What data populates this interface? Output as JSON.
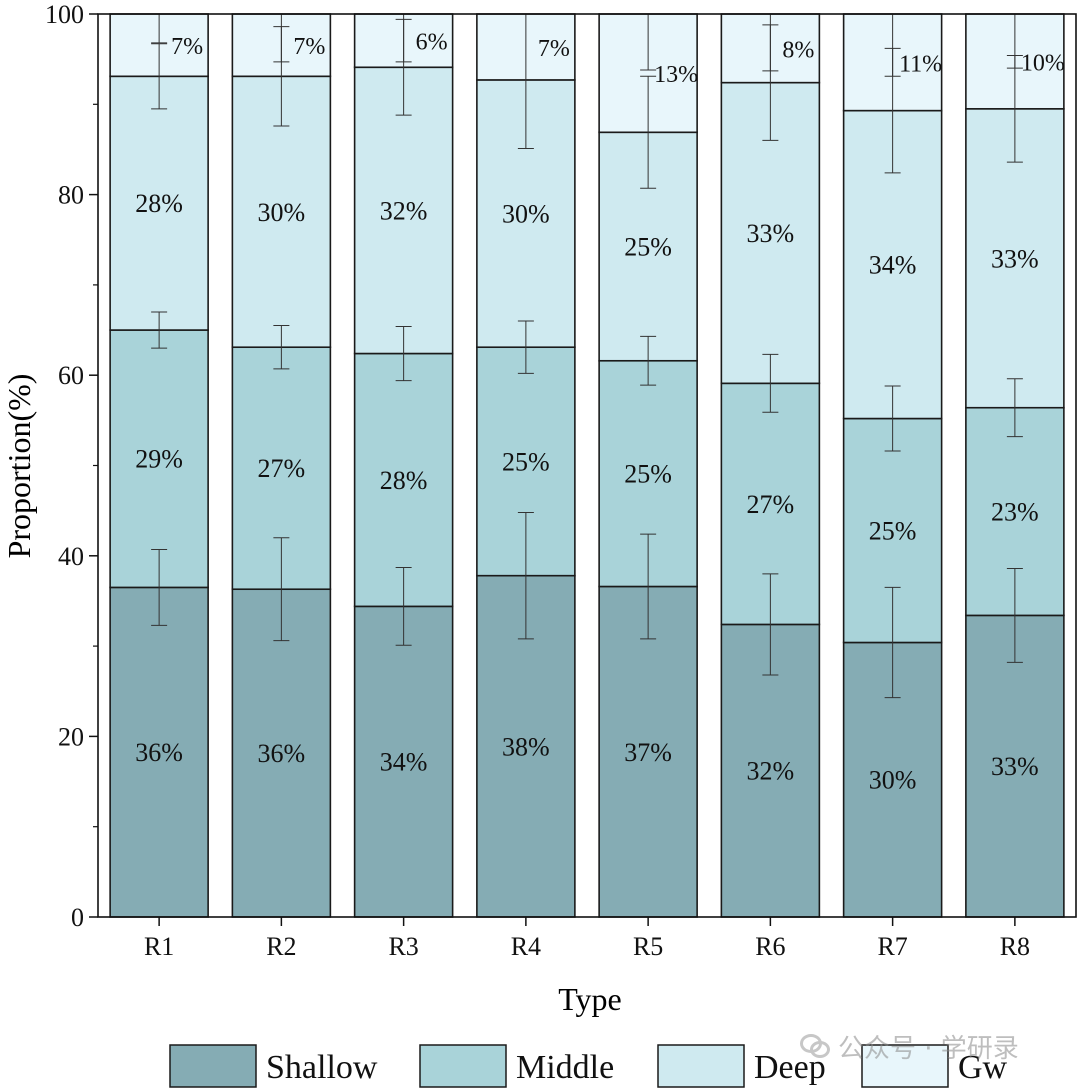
{
  "chart_data": {
    "type": "bar",
    "stacked": true,
    "title": "",
    "xlabel": "Type",
    "ylabel": "Proportion(%)",
    "ylim": [
      0,
      100
    ],
    "yticks": [
      0,
      20,
      40,
      60,
      80,
      100
    ],
    "categories": [
      "R1",
      "R2",
      "R3",
      "R4",
      "R5",
      "R6",
      "R7",
      "R8"
    ],
    "series": [
      {
        "name": "Shallow",
        "color": "#85acb4",
        "values": [
          36.5,
          36.3,
          34.4,
          37.8,
          36.6,
          32.4,
          30.4,
          33.4
        ],
        "labels": [
          "36%",
          "36%",
          "34%",
          "38%",
          "37%",
          "32%",
          "30%",
          "33%"
        ],
        "errors": [
          4.2,
          5.7,
          4.3,
          7.0,
          5.8,
          5.6,
          6.1,
          5.2
        ]
      },
      {
        "name": "Middle",
        "color": "#a9d3d9",
        "values": [
          28.5,
          26.8,
          28.0,
          25.3,
          25.0,
          26.7,
          24.8,
          23.0
        ],
        "labels": [
          "29%",
          "27%",
          "28%",
          "25%",
          "25%",
          "27%",
          "25%",
          "23%"
        ],
        "errors": [
          2.0,
          2.4,
          3.0,
          2.9,
          2.7,
          3.2,
          3.6,
          3.2
        ]
      },
      {
        "name": "Deep",
        "color": "#cfeaf0",
        "values": [
          28.1,
          30.0,
          31.7,
          29.6,
          25.3,
          33.3,
          34.1,
          33.1
        ],
        "labels": [
          "28%",
          "30%",
          "32%",
          "30%",
          "25%",
          "33%",
          "34%",
          "33%"
        ],
        "errors": [
          3.6,
          5.5,
          5.3,
          7.6,
          6.2,
          6.4,
          6.9,
          5.9
        ]
      },
      {
        "name": "Gw",
        "color": "#e8f6fb",
        "values": [
          6.9,
          6.9,
          5.9,
          7.3,
          13.1,
          7.6,
          10.7,
          10.5
        ],
        "labels": [
          "7%",
          "7%",
          "6%",
          "7%",
          "13%",
          "8%",
          "11%",
          "10%"
        ],
        "errors": [
          3.2,
          5.3,
          5.3,
          0,
          6.2,
          6.3,
          6.9,
          6.0
        ]
      }
    ],
    "legend_position": "bottom"
  },
  "watermark": {
    "text": "公众号 · 学研录",
    "icon": "wechat-icon"
  }
}
